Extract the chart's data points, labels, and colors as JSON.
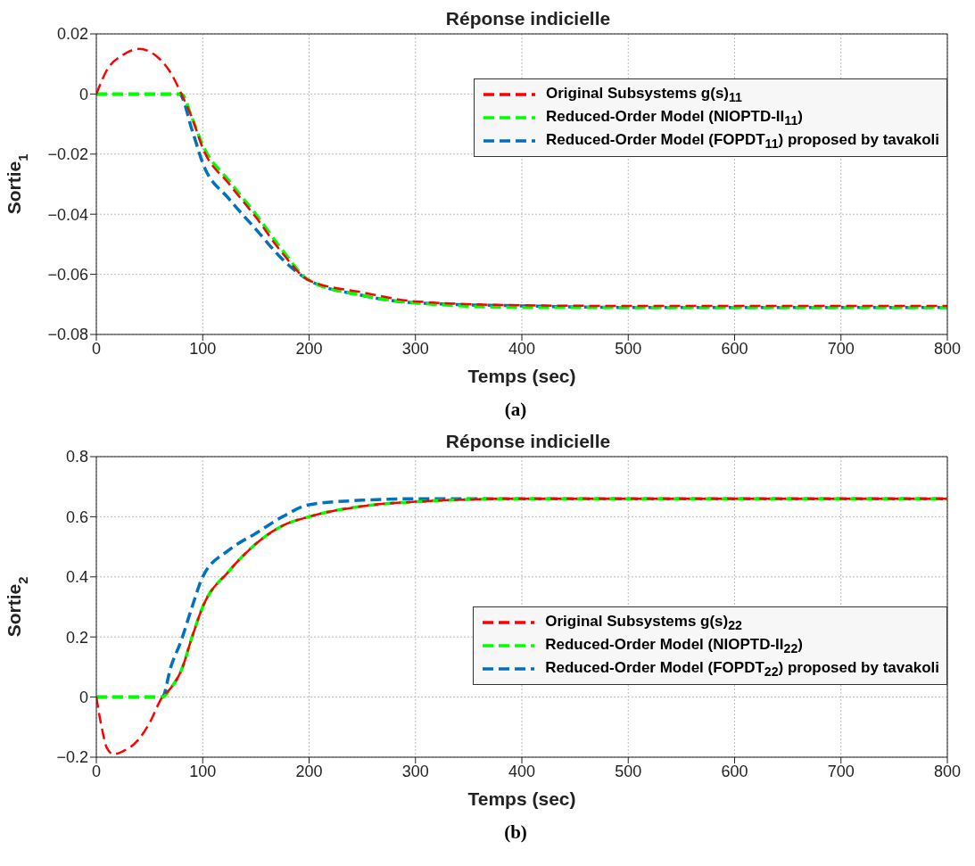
{
  "chart_data": [
    {
      "type": "line",
      "title": "Réponse indicielle",
      "xlabel": "Temps (sec)",
      "ylabel": "Sortie$_{1}$",
      "annotations": [
        "(a)"
      ],
      "xlim": [
        0,
        800
      ],
      "ylim": [
        -0.08,
        0.02
      ],
      "xticks": [
        0,
        100,
        200,
        300,
        400,
        500,
        600,
        700,
        800
      ],
      "yticks": [
        -0.08,
        -0.06,
        -0.04,
        -0.02,
        0,
        0.02
      ],
      "grid": true,
      "legend": "top right",
      "line_style": "dashed",
      "series": [
        {
          "name": "Original Subsystems g(s)$_{11}$",
          "color": "#ff0000",
          "x": [
            0,
            10,
            25,
            40,
            55,
            70,
            80,
            90,
            100,
            125,
            150,
            175,
            200,
            250,
            300,
            400,
            500,
            600,
            700,
            800
          ],
          "values": [
            0,
            0.008,
            0.013,
            0.015,
            0.013,
            0.007,
            0,
            -0.008,
            -0.018,
            -0.03,
            -0.041,
            -0.053,
            -0.062,
            -0.066,
            -0.069,
            -0.0703,
            -0.0705,
            -0.0705,
            -0.0705,
            -0.0705
          ]
        },
        {
          "name": "Reduced-Order Model (NIOPTD-II$_{11}$)",
          "color": "#00ff00",
          "x": [
            0,
            80,
            90,
            100,
            125,
            150,
            175,
            200,
            250,
            300,
            400,
            500,
            600,
            700,
            800
          ],
          "values": [
            0,
            0,
            -0.008,
            -0.017,
            -0.029,
            -0.04,
            -0.052,
            -0.062,
            -0.067,
            -0.0695,
            -0.071,
            -0.071,
            -0.071,
            -0.071,
            -0.071
          ]
        },
        {
          "name": "Reduced-Order Model (FOPDT$_{11}$) proposed by tavakoli",
          "color": "#0072bd",
          "x": [
            0,
            78,
            90,
            100,
            125,
            150,
            175,
            200,
            250,
            300,
            400,
            500,
            600,
            700,
            800
          ],
          "values": [
            0,
            0,
            -0.012,
            -0.023,
            -0.035,
            -0.045,
            -0.055,
            -0.062,
            -0.067,
            -0.0695,
            -0.0705,
            -0.071,
            -0.071,
            -0.071,
            -0.071
          ]
        }
      ]
    },
    {
      "type": "line",
      "title": "Réponse indicielle",
      "xlabel": "Temps (sec)",
      "ylabel": "Sortie$_{2}$",
      "annotations": [
        "(b)"
      ],
      "xlim": [
        0,
        800
      ],
      "ylim": [
        -0.2,
        0.8
      ],
      "xticks": [
        0,
        100,
        200,
        300,
        400,
        500,
        600,
        700,
        800
      ],
      "yticks": [
        -0.2,
        0,
        0.2,
        0.4,
        0.6,
        0.8
      ],
      "grid": true,
      "legend": "right",
      "line_style": "dashed",
      "series": [
        {
          "name": "Original Subsystems g(s)$_{22}$",
          "color": "#ff0000",
          "x": [
            0,
            5,
            10,
            16,
            25,
            40,
            50,
            62,
            70,
            80,
            90,
            100,
            125,
            150,
            175,
            200,
            250,
            300,
            400,
            500,
            600,
            700,
            800
          ],
          "values": [
            0,
            -0.1,
            -0.17,
            -0.19,
            -0.18,
            -0.14,
            -0.086,
            0,
            0.03,
            0.09,
            0.2,
            0.3,
            0.42,
            0.51,
            0.57,
            0.6,
            0.635,
            0.65,
            0.66,
            0.66,
            0.66,
            0.66,
            0.66
          ]
        },
        {
          "name": "Reduced-Order Model (NIOPTD-II$_{22}$)",
          "color": "#00ff00",
          "x": [
            0,
            62,
            70,
            80,
            90,
            100,
            125,
            150,
            175,
            200,
            250,
            300,
            400,
            500,
            600,
            700,
            800
          ],
          "values": [
            0,
            0,
            0.03,
            0.09,
            0.2,
            0.3,
            0.42,
            0.51,
            0.57,
            0.6,
            0.635,
            0.65,
            0.66,
            0.66,
            0.66,
            0.66,
            0.66
          ]
        },
        {
          "name": "Reduced-Order Model (FOPDT$_{22}$) proposed by tavakoli",
          "color": "#0072bd",
          "x": [
            0,
            62,
            70,
            80,
            90,
            100,
            125,
            150,
            175,
            200,
            250,
            300,
            400,
            500,
            600,
            700,
            800
          ],
          "values": [
            0,
            0,
            0.1,
            0.19,
            0.3,
            0.4,
            0.49,
            0.545,
            0.6,
            0.64,
            0.655,
            0.66,
            0.66,
            0.66,
            0.66,
            0.66,
            0.66
          ]
        }
      ]
    }
  ]
}
